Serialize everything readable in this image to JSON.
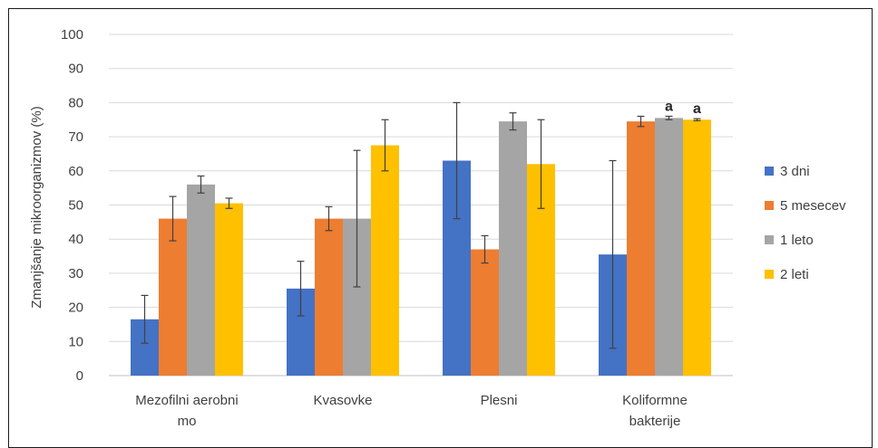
{
  "chart_data": {
    "type": "bar",
    "title": "",
    "xlabel": "",
    "ylabel": "Zmanjšanje mikroorganizmov (%)",
    "ylim": [
      0,
      100
    ],
    "yticks": [
      0,
      10,
      20,
      30,
      40,
      50,
      60,
      70,
      80,
      90,
      100
    ],
    "grid": true,
    "legend_position": "right",
    "categories": [
      [
        "Mezofilni aerobni",
        "mo"
      ],
      [
        "Kvasovke"
      ],
      [
        "Plesni"
      ],
      [
        "Koliformne",
        "bakterije"
      ]
    ],
    "series": [
      {
        "name": "3 dni",
        "color": "#4472c4",
        "values": [
          16.5,
          25.5,
          63,
          35.5
        ],
        "err": [
          7,
          8,
          17,
          27.5
        ]
      },
      {
        "name": "5 mesecev",
        "color": "#ed7d31",
        "values": [
          46,
          46,
          37,
          74.5
        ],
        "err": [
          6.5,
          3.5,
          4,
          1.5
        ]
      },
      {
        "name": "1 leto",
        "color": "#a5a5a5",
        "values": [
          56,
          46,
          74.5,
          75.5
        ],
        "err": [
          2.5,
          20,
          2.5,
          0.5
        ]
      },
      {
        "name": "2 leti",
        "color": "#ffc000",
        "values": [
          50.5,
          67.5,
          62,
          75
        ],
        "err": [
          1.5,
          7.5,
          13,
          0.3
        ]
      }
    ],
    "annotations": [
      {
        "text": "a",
        "category": 3,
        "series": 2
      },
      {
        "text": "a",
        "category": 3,
        "series": 3
      }
    ]
  }
}
